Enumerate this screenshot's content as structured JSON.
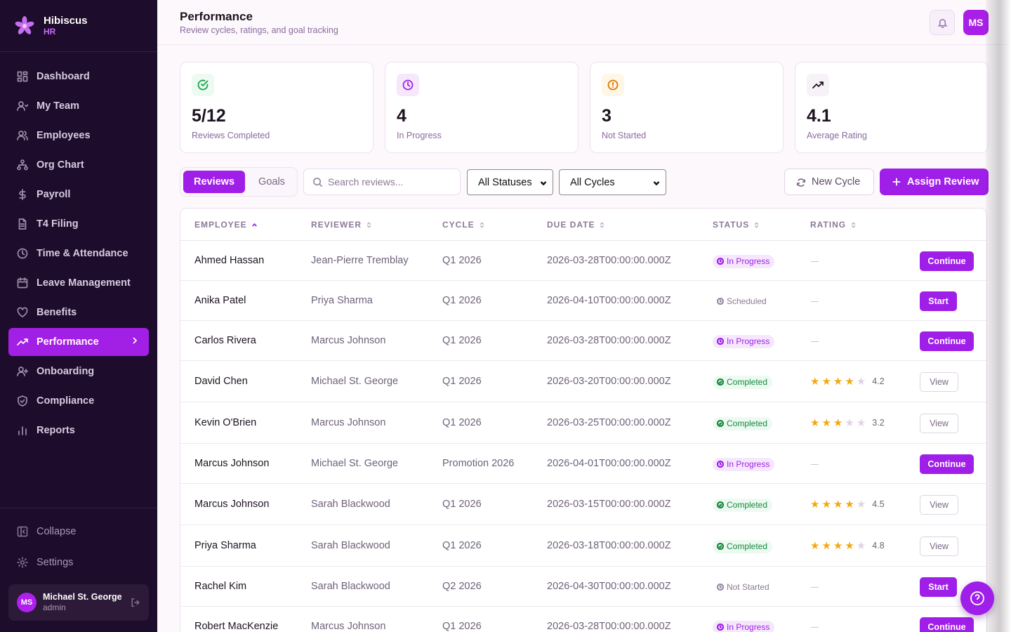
{
  "brand": {
    "name": "Hibiscus",
    "sub": "HR"
  },
  "nav": [
    {
      "label": "Dashboard",
      "icon": "dashboard-icon"
    },
    {
      "label": "My Team",
      "icon": "team-icon"
    },
    {
      "label": "Employees",
      "icon": "employees-icon"
    },
    {
      "label": "Org Chart",
      "icon": "org-chart-icon"
    },
    {
      "label": "Payroll",
      "icon": "dollar-icon"
    },
    {
      "label": "T4 Filing",
      "icon": "document-icon"
    },
    {
      "label": "Time & Attendance",
      "icon": "clock-icon"
    },
    {
      "label": "Leave Management",
      "icon": "calendar-icon"
    },
    {
      "label": "Benefits",
      "icon": "heart-icon"
    },
    {
      "label": "Performance",
      "icon": "trending-up-icon",
      "active": true
    },
    {
      "label": "Onboarding",
      "icon": "user-plus-icon"
    },
    {
      "label": "Compliance",
      "icon": "shield-icon"
    },
    {
      "label": "Reports",
      "icon": "bar-chart-icon"
    }
  ],
  "sidebar_bottom": {
    "collapse_label": "Collapse",
    "settings_label": "Settings"
  },
  "user": {
    "initials": "MS",
    "name": "Michael St. George",
    "role": "admin"
  },
  "header": {
    "title": "Performance",
    "subtitle": "Review cycles, ratings, and goal tracking",
    "avatar_initials": "MS"
  },
  "stats": [
    {
      "value": "5/12",
      "label": "Reviews Completed",
      "icon": "check-circle-icon",
      "color": "#16a34a",
      "bg": "#ecfaf1"
    },
    {
      "value": "4",
      "label": "In Progress",
      "icon": "clock-icon",
      "color": "#a01fe8",
      "bg": "#f5e8fd"
    },
    {
      "value": "3",
      "label": "Not Started",
      "icon": "alert-circle-icon",
      "color": "#d97706",
      "bg": "#fff7e6"
    },
    {
      "value": "4.1",
      "label": "Average Rating",
      "icon": "trending-up-icon",
      "color": "#1d1320",
      "bg": "#f7f1f8"
    }
  ],
  "toolbar": {
    "tab_reviews": "Reviews",
    "tab_goals": "Goals",
    "search_placeholder": "Search reviews...",
    "status_filter": "All Statuses",
    "cycle_filter": "All Cycles",
    "new_cycle_label": "New Cycle",
    "assign_label": "Assign Review"
  },
  "table": {
    "columns": [
      "EMPLOYEE",
      "REVIEWER",
      "CYCLE",
      "DUE DATE",
      "STATUS",
      "RATING"
    ],
    "rows": [
      {
        "employee": "Ahmed Hassan",
        "reviewer": "Jean-Pierre Tremblay",
        "cycle": "Q1 2026",
        "due": "2026-03-28T00:00:00.000Z",
        "status": "In Progress",
        "status_type": "progress",
        "rating": null,
        "action": "Continue"
      },
      {
        "employee": "Anika Patel",
        "reviewer": "Priya Sharma",
        "cycle": "Q1 2026",
        "due": "2026-04-10T00:00:00.000Z",
        "status": "Scheduled",
        "status_type": "scheduled",
        "rating": null,
        "action": "Start"
      },
      {
        "employee": "Carlos Rivera",
        "reviewer": "Marcus Johnson",
        "cycle": "Q1 2026",
        "due": "2026-03-28T00:00:00.000Z",
        "status": "In Progress",
        "status_type": "progress",
        "rating": null,
        "action": "Continue"
      },
      {
        "employee": "David Chen",
        "reviewer": "Michael St. George",
        "cycle": "Q1 2026",
        "due": "2026-03-20T00:00:00.000Z",
        "status": "Completed",
        "status_type": "completed",
        "rating": 4.2,
        "stars": 4,
        "action": "View"
      },
      {
        "employee": "Kevin O'Brien",
        "reviewer": "Marcus Johnson",
        "cycle": "Q1 2026",
        "due": "2026-03-25T00:00:00.000Z",
        "status": "Completed",
        "status_type": "completed",
        "rating": 3.2,
        "stars": 3,
        "action": "View"
      },
      {
        "employee": "Marcus Johnson",
        "reviewer": "Michael St. George",
        "cycle": "Promotion 2026",
        "due": "2026-04-01T00:00:00.000Z",
        "status": "In Progress",
        "status_type": "progress",
        "rating": null,
        "action": "Continue"
      },
      {
        "employee": "Marcus Johnson",
        "reviewer": "Sarah Blackwood",
        "cycle": "Q1 2026",
        "due": "2026-03-15T00:00:00.000Z",
        "status": "Completed",
        "status_type": "completed",
        "rating": 4.5,
        "stars": 4,
        "action": "View"
      },
      {
        "employee": "Priya Sharma",
        "reviewer": "Sarah Blackwood",
        "cycle": "Q1 2026",
        "due": "2026-03-18T00:00:00.000Z",
        "status": "Completed",
        "status_type": "completed",
        "rating": 4.8,
        "stars": 4,
        "action": "View"
      },
      {
        "employee": "Rachel Kim",
        "reviewer": "Sarah Blackwood",
        "cycle": "Q2 2026",
        "due": "2026-04-30T00:00:00.000Z",
        "status": "Not Started",
        "status_type": "notstarted",
        "rating": null,
        "action": "Start"
      },
      {
        "employee": "Robert MacKenzie",
        "reviewer": "Marcus Johnson",
        "cycle": "Q1 2026",
        "due": "2026-03-28T00:00:00.000Z",
        "status": "In Progress",
        "status_type": "progress",
        "rating": null,
        "action": "Continue"
      }
    ]
  }
}
